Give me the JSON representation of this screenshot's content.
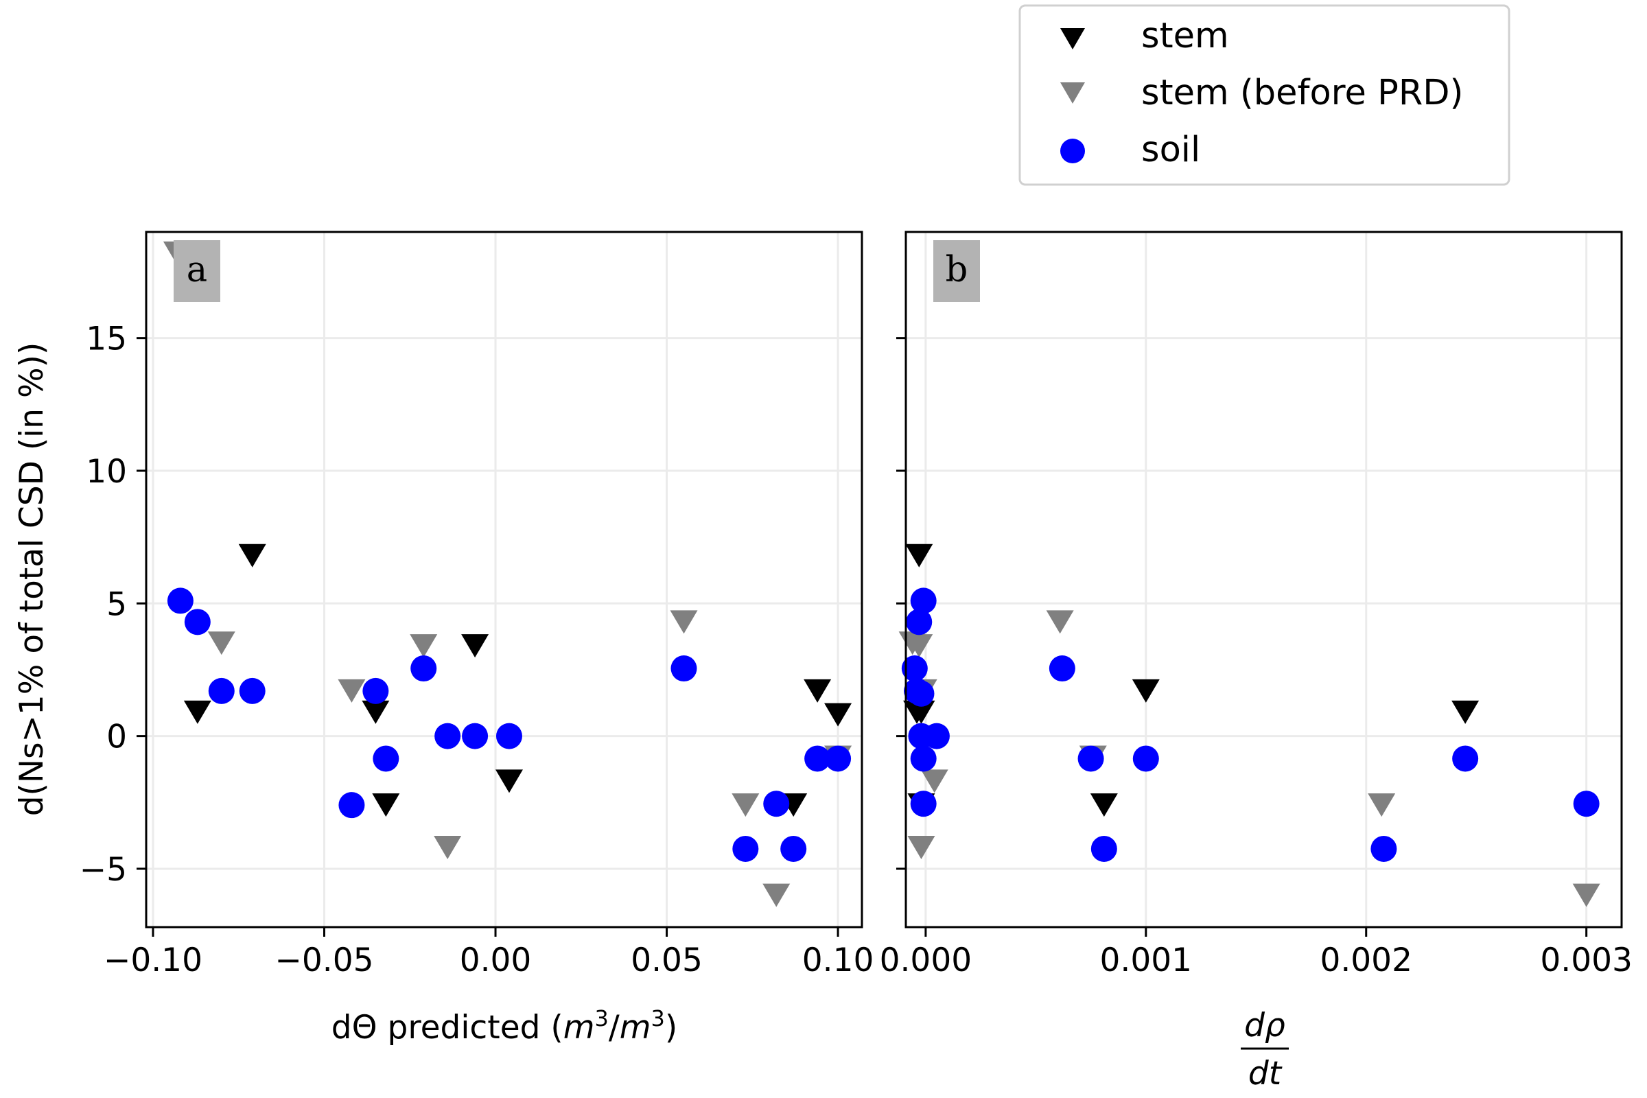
{
  "legend": {
    "entries": [
      {
        "label": "stem",
        "marker": "triangle-down",
        "color": "#000000"
      },
      {
        "label": "stem (before PRD)",
        "marker": "triangle-down",
        "color": "#808080"
      },
      {
        "label": "soil",
        "marker": "circle",
        "color": "#0000ff"
      }
    ]
  },
  "chart_data": [
    {
      "type": "scatter",
      "panel_label": "a",
      "xlabel": "dΘ predicted",
      "xlabel_units": "(m3/m3)",
      "ylabel": "d(Ns>1% of total CSD (in %))",
      "xlim": [
        -0.102,
        0.107
      ],
      "ylim": [
        -7.2,
        19.0
      ],
      "xticks": [
        -0.1,
        -0.05,
        0.0,
        0.05,
        0.1
      ],
      "xtick_labels": [
        "−0.10",
        "−0.05",
        "0.00",
        "0.05",
        "0.10"
      ],
      "yticks": [
        -5,
        0,
        5,
        10,
        15
      ],
      "ytick_labels": [
        "−5",
        "0",
        "5",
        "10",
        "15"
      ],
      "grid": true,
      "series": [
        {
          "name": "stem (before PRD)",
          "marker": "triangle-down",
          "color": "#808080",
          "points": [
            [
              -0.093,
              18.2
            ],
            [
              -0.08,
              3.5
            ],
            [
              -0.042,
              1.7
            ],
            [
              -0.021,
              3.4
            ],
            [
              -0.014,
              -4.2
            ],
            [
              0.055,
              4.3
            ],
            [
              0.073,
              -2.6
            ],
            [
              0.082,
              -6.0
            ],
            [
              0.1,
              -0.8
            ]
          ]
        },
        {
          "name": "stem",
          "marker": "triangle-down",
          "color": "#000000",
          "points": [
            [
              -0.087,
              0.9
            ],
            [
              -0.071,
              6.8
            ],
            [
              -0.035,
              0.9
            ],
            [
              -0.032,
              -2.6
            ],
            [
              -0.006,
              3.4
            ],
            [
              0.004,
              -1.7
            ],
            [
              0.087,
              -2.6
            ],
            [
              0.094,
              1.7
            ],
            [
              0.1,
              0.8
            ]
          ]
        },
        {
          "name": "soil",
          "marker": "circle",
          "color": "#0000ff",
          "points": [
            [
              -0.092,
              5.1
            ],
            [
              -0.087,
              4.3
            ],
            [
              -0.08,
              1.7
            ],
            [
              -0.071,
              1.7
            ],
            [
              -0.042,
              -2.6
            ],
            [
              -0.035,
              1.7
            ],
            [
              -0.032,
              -0.85
            ],
            [
              -0.021,
              2.55
            ],
            [
              -0.014,
              0.0
            ],
            [
              -0.006,
              0.0
            ],
            [
              0.004,
              0.0
            ],
            [
              0.055,
              2.55
            ],
            [
              0.073,
              -4.25
            ],
            [
              0.082,
              -2.55
            ],
            [
              0.087,
              -4.25
            ],
            [
              0.094,
              -0.85
            ],
            [
              0.1,
              -0.85
            ]
          ]
        }
      ]
    },
    {
      "type": "scatter",
      "panel_label": "b",
      "xlabel_numerator": "dρ",
      "xlabel_denominator": "dt",
      "xlim": [
        -9e-05,
        0.00316
      ],
      "ylim": [
        -7.2,
        19.0
      ],
      "xticks": [
        0.0,
        0.001,
        0.002,
        0.003
      ],
      "xtick_labels": [
        "0.000",
        "0.001",
        "0.002",
        "0.003"
      ],
      "yticks": [
        -5,
        0,
        5,
        10,
        15
      ],
      "grid": true,
      "series": [
        {
          "name": "stem (before PRD)",
          "marker": "triangle-down",
          "color": "#808080",
          "points": [
            [
              -6e-05,
              3.5
            ],
            [
              -3e-05,
              3.4
            ],
            [
              -1e-05,
              1.7
            ],
            [
              -2e-05,
              -4.2
            ],
            [
              4e-05,
              -1.7
            ],
            [
              0.00061,
              4.3
            ],
            [
              0.00076,
              -0.8
            ],
            [
              0.00207,
              -2.6
            ],
            [
              0.003,
              -6.0
            ]
          ]
        },
        {
          "name": "stem",
          "marker": "triangle-down",
          "color": "#000000",
          "points": [
            [
              -3e-05,
              6.8
            ],
            [
              -4e-05,
              0.9
            ],
            [
              -2e-05,
              0.9
            ],
            [
              -2e-05,
              -2.6
            ],
            [
              0.00081,
              -2.6
            ],
            [
              0.001,
              1.7
            ],
            [
              0.00245,
              0.9
            ]
          ]
        },
        {
          "name": "soil",
          "marker": "circle",
          "color": "#0000ff",
          "points": [
            [
              -1e-05,
              5.1
            ],
            [
              -3e-05,
              4.3
            ],
            [
              -5e-05,
              2.55
            ],
            [
              -4e-05,
              1.7
            ],
            [
              -2e-05,
              1.6
            ],
            [
              -2e-05,
              0.0
            ],
            [
              5e-05,
              0.0
            ],
            [
              -1e-05,
              -0.85
            ],
            [
              -1e-05,
              -2.55
            ],
            [
              0.00062,
              2.55
            ],
            [
              0.00075,
              -0.85
            ],
            [
              0.00081,
              -4.25
            ],
            [
              0.001,
              -0.85
            ],
            [
              0.00208,
              -4.25
            ],
            [
              0.00245,
              -0.85
            ],
            [
              0.003,
              -2.55
            ]
          ]
        }
      ]
    }
  ]
}
